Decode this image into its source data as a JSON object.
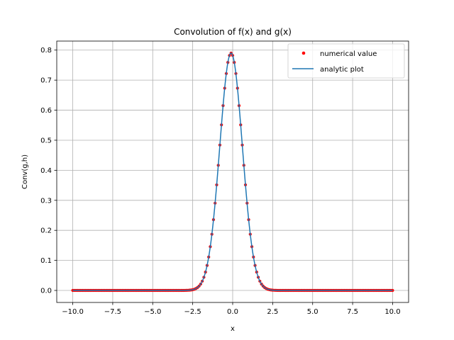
{
  "chart_data": {
    "type": "line",
    "title": "Convolution of f(x) and g(x)",
    "xlabel": "x",
    "ylabel": "Conv(g,h)",
    "xlim": [
      -11,
      11
    ],
    "ylim": [
      -0.04,
      0.83
    ],
    "xticks": [
      -10.0,
      -7.5,
      -5.0,
      -2.5,
      0.0,
      2.5,
      5.0,
      7.5,
      10.0
    ],
    "xtick_labels": [
      "−10.0",
      "−7.5",
      "−5.0",
      "−2.5",
      "0.0",
      "2.5",
      "5.0",
      "7.5",
      "10.0"
    ],
    "yticks": [
      0.0,
      0.1,
      0.2,
      0.3,
      0.4,
      0.5,
      0.6,
      0.7,
      0.8
    ],
    "ytick_labels": [
      "0.0",
      "0.1",
      "0.2",
      "0.3",
      "0.4",
      "0.5",
      "0.6",
      "0.7",
      "0.8"
    ],
    "grid": true,
    "legend_position": "top-right",
    "series": [
      {
        "name": "numerical value",
        "kind": "scatter",
        "color": "#ff0000",
        "x_range": [
          -10,
          10
        ],
        "n_points": 201,
        "peak_value": 0.79,
        "peak_at": -0.1
      },
      {
        "name": "analytic plot",
        "kind": "line",
        "color": "#1f77b4",
        "x_range": [
          -10,
          10
        ],
        "peak_value": 0.79,
        "peak_at": -0.1
      }
    ]
  }
}
